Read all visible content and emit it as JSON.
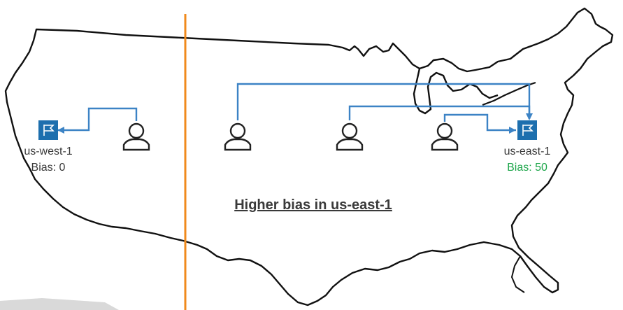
{
  "regions": {
    "west": {
      "name": "us-west-1",
      "bias": "Bias: 0"
    },
    "east": {
      "name": "us-east-1",
      "bias": "Bias: 50"
    }
  },
  "caption": "Higher bias in us-east-1",
  "icons": {
    "region": "flag-icon",
    "user": "user-icon"
  },
  "colors": {
    "connector": "#3c83c5",
    "divider": "#f08a1c",
    "region_box": "#1d6fae",
    "bias_highlight": "#1ea64b",
    "map_outline": "#111111"
  }
}
